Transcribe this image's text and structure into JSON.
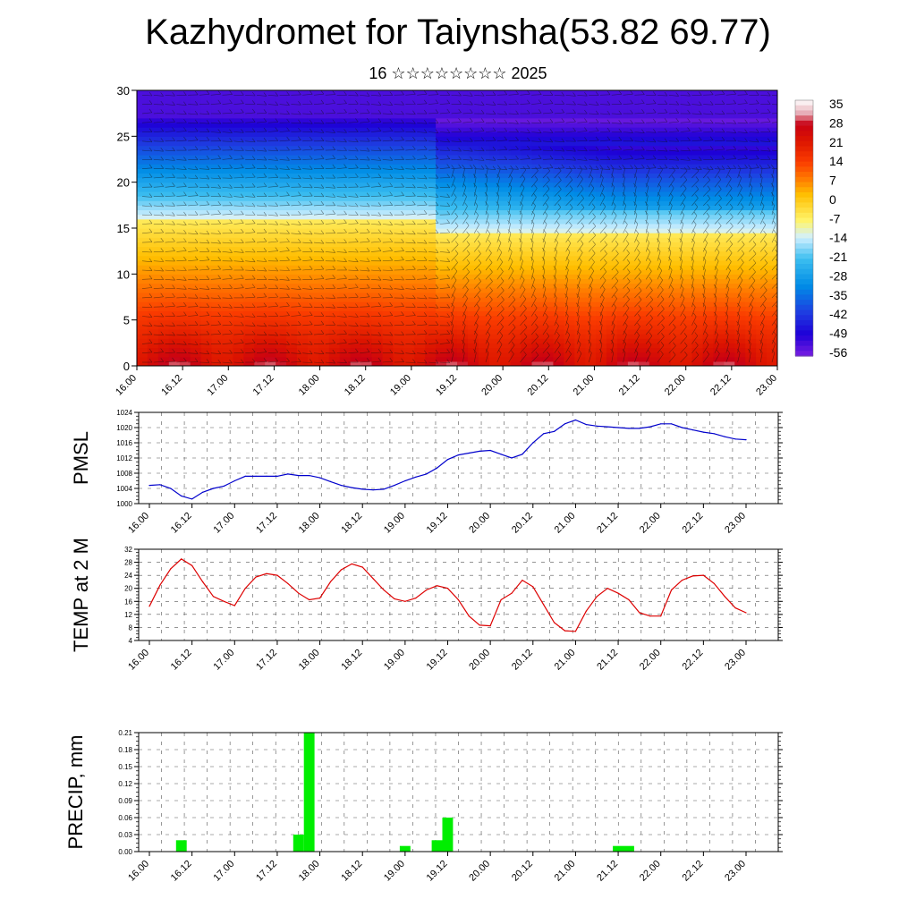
{
  "header": {
    "title": "Kazhydromet for Taiynsha(53.82 69.77)",
    "subtitle": "16 ☆☆☆☆☆☆☆☆ 2025"
  },
  "time_labels": [
    "16.00",
    "16.12",
    "17.00",
    "17.12",
    "18.00",
    "18.12",
    "19.00",
    "19.12",
    "20.00",
    "20.12",
    "21.00",
    "21.12",
    "22.00",
    "22.12",
    "23.00"
  ],
  "chart_data": [
    {
      "id": "cross-section",
      "type": "heatmap",
      "description_fields": "temperature cross-section with wind barbs over height vs time",
      "ylim": [
        0,
        30
      ],
      "y_ticks": [
        0,
        5,
        10,
        15,
        20,
        25,
        30
      ],
      "colorbar": {
        "labels": [
          "35",
          "28",
          "21",
          "14",
          "7",
          "0",
          "-7",
          "-14",
          "-21",
          "-28",
          "-35",
          "-42",
          "-49",
          "-56"
        ],
        "colors": [
          "#ffffff",
          "#e0a0a8",
          "#c80000",
          "#e02000",
          "#ff4000",
          "#ff8000",
          "#ffc000",
          "#fff070",
          "#d0f0ff",
          "#40c0f0",
          "#0090e0",
          "#2040e0",
          "#2000d0",
          "#8020e0"
        ]
      }
    },
    {
      "id": "pmsl",
      "type": "line",
      "ylabel": "PMSL",
      "ylim": [
        1000,
        1024
      ],
      "y_ticks": [
        "1000",
        "1004",
        "1008",
        "1012",
        "1016",
        "1020",
        "1024"
      ],
      "color": "#0000cc",
      "values": [
        1004.8,
        1005.0,
        1004.0,
        1002.0,
        1001.2,
        1003.0,
        1004.0,
        1004.6,
        1006.0,
        1007.2,
        1007.2,
        1007.2,
        1007.2,
        1007.8,
        1007.4,
        1007.4,
        1006.8,
        1005.8,
        1004.8,
        1004.2,
        1003.8,
        1003.6,
        1003.8,
        1004.8,
        1006.0,
        1007.0,
        1007.8,
        1009.4,
        1011.6,
        1012.8,
        1013.3,
        1013.8,
        1014.0,
        1013.0,
        1012.0,
        1013.0,
        1016.0,
        1018.4,
        1019.0,
        1021.0,
        1022.0,
        1020.8,
        1020.4,
        1020.2,
        1020.0,
        1019.8,
        1019.8,
        1020.2,
        1021.0,
        1021.0,
        1020.0,
        1019.4,
        1018.8,
        1018.4,
        1017.6,
        1017.0,
        1016.8
      ]
    },
    {
      "id": "temp2m",
      "type": "line",
      "ylabel": "TEMP at 2 M",
      "ylim": [
        4,
        32
      ],
      "y_ticks": [
        "4",
        "8",
        "12",
        "16",
        "20",
        "24",
        "28",
        "32"
      ],
      "color": "#dd0000",
      "values": [
        14.5,
        21.0,
        26.0,
        29.0,
        27.0,
        22.0,
        17.5,
        16.0,
        14.7,
        20.0,
        23.5,
        24.5,
        24.0,
        21.5,
        18.5,
        16.5,
        17.0,
        22.0,
        25.7,
        27.5,
        26.5,
        23.0,
        19.5,
        16.8,
        16.0,
        17.0,
        19.5,
        20.8,
        20.0,
        16.5,
        11.5,
        8.7,
        8.5,
        16.5,
        18.5,
        22.5,
        20.5,
        15.0,
        9.5,
        7.0,
        6.8,
        13.0,
        17.5,
        20.0,
        18.5,
        16.5,
        12.5,
        11.5,
        11.5,
        19.5,
        22.5,
        23.8,
        24.0,
        21.5,
        17.5,
        14.0,
        12.5
      ]
    },
    {
      "id": "precip",
      "type": "bar",
      "ylabel": "PRECIP, mm",
      "ylim": [
        0,
        0.21
      ],
      "y_ticks": [
        "0.00",
        "0.03",
        "0.06",
        "0.09",
        "0.12",
        "0.15",
        "0.18",
        "0.21"
      ],
      "color": "#00ee00",
      "values": [
        0,
        0,
        0,
        0.02,
        0,
        0,
        0,
        0,
        0,
        0,
        0,
        0,
        0,
        0,
        0.03,
        0.21,
        0,
        0,
        0,
        0,
        0,
        0,
        0,
        0,
        0.01,
        0,
        0,
        0.02,
        0.06,
        0,
        0,
        0,
        0,
        0,
        0,
        0,
        0,
        0,
        0,
        0,
        0,
        0,
        0,
        0,
        0.01,
        0.01,
        0,
        0,
        0,
        0,
        0,
        0,
        0,
        0,
        0,
        0,
        0
      ]
    }
  ]
}
